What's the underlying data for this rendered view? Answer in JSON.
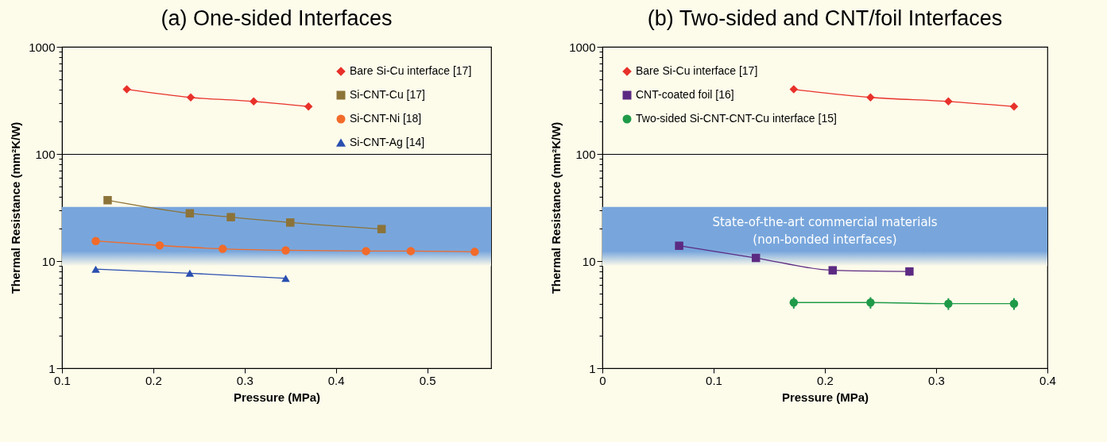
{
  "chart_data": [
    {
      "type": "line",
      "title": "(a) One-sided Interfaces",
      "xlabel": "Pressure (MPa)",
      "ylabel": "Thermal Resistance (mm²K/W)",
      "log": "y",
      "grid": "y",
      "legend": "top right",
      "line_style": "solid",
      "xlim": [
        0.1,
        0.57
      ],
      "xticks": [
        0.1,
        0.2,
        0.3,
        0.4,
        0.5
      ],
      "ylim": [
        1,
        1000
      ],
      "yticks": [
        1,
        {
          "value": 2,
          "label": null
        },
        {
          "value": 3,
          "label": null
        },
        {
          "value": 4,
          "label": null
        },
        {
          "value": 5,
          "label": null
        },
        {
          "value": 6,
          "label": null
        },
        {
          "value": 7,
          "label": null
        },
        {
          "value": 8,
          "label": null
        },
        {
          "value": 9,
          "label": null
        },
        10,
        {
          "value": 20,
          "label": null
        },
        {
          "value": 30,
          "label": null
        },
        {
          "value": 40,
          "label": null
        },
        {
          "value": 50,
          "label": null
        },
        {
          "value": 60,
          "label": null
        },
        {
          "value": 70,
          "label": null
        },
        {
          "value": 80,
          "label": null
        },
        {
          "value": 90,
          "label": null
        },
        100,
        {
          "value": 200,
          "label": null
        },
        {
          "value": 300,
          "label": null
        },
        {
          "value": 400,
          "label": null
        },
        {
          "value": 500,
          "label": null
        },
        {
          "value": 600,
          "label": null
        },
        {
          "value": 700,
          "label": null
        },
        {
          "value": 800,
          "label": null
        },
        {
          "value": 900,
          "label": null
        },
        1000
      ],
      "bands": [
        {
          "axis": "y",
          "from": 9,
          "to": 32,
          "color": "#78a6dc"
        }
      ],
      "series": [
        {
          "name": "Bare Si-Cu interface [17]",
          "color": "#e8312a",
          "marker": "diamond",
          "x": [
            0.171,
            0.241,
            0.31,
            0.37
          ],
          "values": [
            401,
            337,
            309,
            277
          ]
        },
        {
          "name": "Si-CNT-Cu [17]",
          "color": "#8c7338",
          "marker": "square",
          "x": [
            0.15,
            0.24,
            0.285,
            0.35,
            0.45
          ],
          "values": [
            37,
            27.9,
            25.7,
            22.9,
            19.9
          ]
        },
        {
          "name": "Si-CNT-Ni [18]",
          "color": "#f26b2a",
          "marker": "circle",
          "x": [
            0.137,
            0.207,
            0.276,
            0.345,
            0.433,
            0.482,
            0.552
          ],
          "values": [
            15.4,
            14,
            13,
            12.6,
            12.4,
            12.4,
            12.2
          ]
        },
        {
          "name": "Si-CNT-Ag [14]",
          "color": "#2a4fb0",
          "marker": "triangle",
          "x": [
            0.137,
            0.24,
            0.345
          ],
          "values": [
            8.4,
            7.7,
            6.9
          ]
        }
      ]
    },
    {
      "type": "line",
      "title": "(b) Two-sided and CNT/foil Interfaces",
      "xlabel": "Pressure (MPa)",
      "ylabel": "Thermal Resistance (mm²K/W)",
      "log": "y",
      "grid": "y",
      "legend": "top left",
      "line_style": "solid",
      "xlim": [
        0,
        0.4
      ],
      "xticks": [
        0,
        0.1,
        0.2,
        0.3,
        0.4
      ],
      "ylim": [
        1,
        1000
      ],
      "yticks": [
        1,
        {
          "value": 2,
          "label": null
        },
        {
          "value": 3,
          "label": null
        },
        {
          "value": 4,
          "label": null
        },
        {
          "value": 5,
          "label": null
        },
        {
          "value": 6,
          "label": null
        },
        {
          "value": 7,
          "label": null
        },
        {
          "value": 8,
          "label": null
        },
        {
          "value": 9,
          "label": null
        },
        10,
        {
          "value": 20,
          "label": null
        },
        {
          "value": 30,
          "label": null
        },
        {
          "value": 40,
          "label": null
        },
        {
          "value": 50,
          "label": null
        },
        {
          "value": 60,
          "label": null
        },
        {
          "value": 70,
          "label": null
        },
        {
          "value": 80,
          "label": null
        },
        {
          "value": 90,
          "label": null
        },
        100,
        {
          "value": 200,
          "label": null
        },
        {
          "value": 300,
          "label": null
        },
        {
          "value": 400,
          "label": null
        },
        {
          "value": 500,
          "label": null
        },
        {
          "value": 600,
          "label": null
        },
        {
          "value": 700,
          "label": null
        },
        {
          "value": 800,
          "label": null
        },
        {
          "value": 900,
          "label": null
        },
        1000
      ],
      "bands": [
        {
          "axis": "y",
          "from": 9,
          "to": 32,
          "color": "#78a6dc",
          "label": "State-of-the-art commercial materials\n(non-bonded interfaces)"
        }
      ],
      "series": [
        {
          "name": "Bare Si-Cu interface [17]",
          "color": "#e8312a",
          "marker": "diamond",
          "x": [
            0.172,
            0.241,
            0.311,
            0.37
          ],
          "values": [
            401,
            337,
            309,
            277
          ]
        },
        {
          "name": "CNT-coated foil [16]",
          "color": "#5c2a82",
          "marker": "square",
          "x": [
            0.069,
            0.138,
            0.207,
            0.276
          ],
          "values": [
            13.9,
            10.7,
            8.2,
            8
          ],
          "errors": [
            null,
            null,
            0.7,
            0.7
          ]
        },
        {
          "name": "Two-sided Si-CNT-CNT-Cu interface [15]",
          "color": "#1f9a48",
          "marker": "circle",
          "x": [
            0.172,
            0.241,
            0.311,
            0.37
          ],
          "values": [
            4.1,
            4.1,
            4,
            4
          ],
          "errors": [
            0.5,
            0.5,
            0.5,
            0.5
          ]
        }
      ]
    }
  ]
}
